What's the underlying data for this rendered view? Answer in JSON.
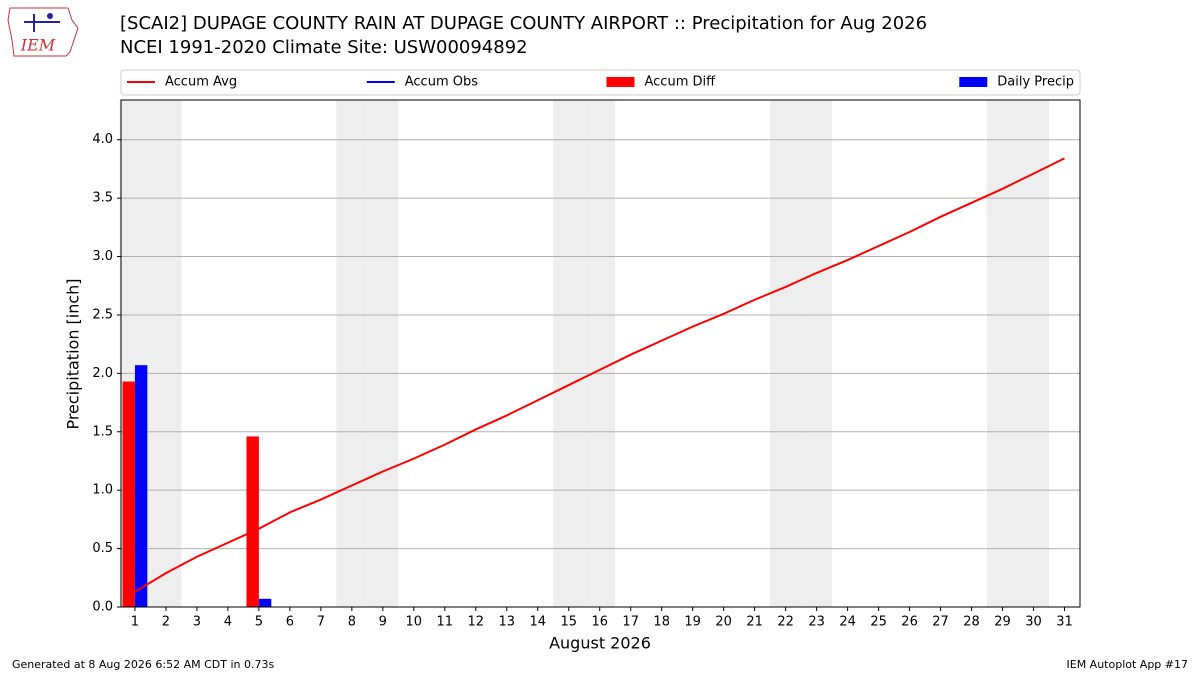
{
  "header": {
    "logo": "IEM",
    "footer_left": "Generated at 8 Aug 2026 6:52 AM CDT in 0.73s",
    "footer_right": "IEM Autoplot App #17"
  },
  "chart_data": {
    "type": "combo",
    "title": "[SCAI2] DUPAGE COUNTY RAIN AT DUPAGE COUNTY AIRPORT :: Precipitation for Aug 2026",
    "subtitle": "NCEI 1991-2020 Climate Site: USW00094892",
    "x_label": "August 2026",
    "y_label": "Precipitation [inch]",
    "x": [
      1,
      2,
      3,
      4,
      5,
      6,
      7,
      8,
      9,
      10,
      11,
      12,
      13,
      14,
      15,
      16,
      17,
      18,
      19,
      20,
      21,
      22,
      23,
      24,
      25,
      26,
      27,
      28,
      29,
      30,
      31
    ],
    "xlim": [
      0.55,
      31.5
    ],
    "xticks": [
      1,
      2,
      3,
      4,
      5,
      6,
      7,
      8,
      9,
      10,
      11,
      12,
      13,
      14,
      15,
      16,
      17,
      18,
      19,
      20,
      21,
      22,
      23,
      24,
      25,
      26,
      27,
      28,
      29,
      30,
      31
    ],
    "ylim": [
      0,
      4.34
    ],
    "yticks": [
      {
        "value": 0,
        "label": "0.0"
      },
      {
        "value": 0.5,
        "label": "0.5"
      },
      {
        "value": 1,
        "label": "1.0"
      },
      {
        "value": 1.5,
        "label": "1.5"
      },
      {
        "value": 2,
        "label": "2.0"
      },
      {
        "value": 2.5,
        "label": "2.5"
      },
      {
        "value": 3,
        "label": "3.0"
      },
      {
        "value": 3.5,
        "label": "3.5"
      },
      {
        "value": 4,
        "label": "4.0"
      }
    ],
    "grid": true,
    "series": [
      {
        "name": "Accum Avg",
        "type": "line",
        "color": "#ff0000",
        "values": [
          0.13,
          0.29,
          0.43,
          0.55,
          0.67,
          0.81,
          0.92,
          1.04,
          1.16,
          1.27,
          1.39,
          1.52,
          1.64,
          1.77,
          1.9,
          2.03,
          2.16,
          2.28,
          2.4,
          2.51,
          2.63,
          2.74,
          2.86,
          2.97,
          3.09,
          3.21,
          3.34,
          3.46,
          3.58,
          3.71,
          3.84
        ]
      },
      {
        "name": "Accum Obs",
        "type": "line",
        "color": "#0000ff",
        "values": [
          null,
          null,
          null,
          null,
          null,
          null,
          null,
          null,
          null,
          null,
          null,
          null,
          null,
          null,
          null,
          null,
          null,
          null,
          null,
          null,
          null,
          null,
          null,
          null,
          null,
          null,
          null,
          null,
          null,
          null,
          null
        ]
      },
      {
        "name": "Accum Diff",
        "type": "bar",
        "color": "#ff0000",
        "values": [
          1.93,
          null,
          null,
          null,
          1.46,
          null,
          null,
          null,
          null,
          null,
          null,
          null,
          null,
          null,
          null,
          null,
          null,
          null,
          null,
          null,
          null,
          null,
          null,
          null,
          null,
          null,
          null,
          null,
          null,
          null,
          null
        ]
      },
      {
        "name": "Daily Precip",
        "type": "bar",
        "color": "#0000ff",
        "values": [
          2.07,
          null,
          null,
          null,
          0.07,
          null,
          null,
          null,
          null,
          null,
          null,
          null,
          null,
          null,
          null,
          null,
          null,
          null,
          null,
          null,
          null,
          null,
          null,
          null,
          null,
          null,
          null,
          null,
          null,
          null,
          null
        ]
      }
    ]
  }
}
